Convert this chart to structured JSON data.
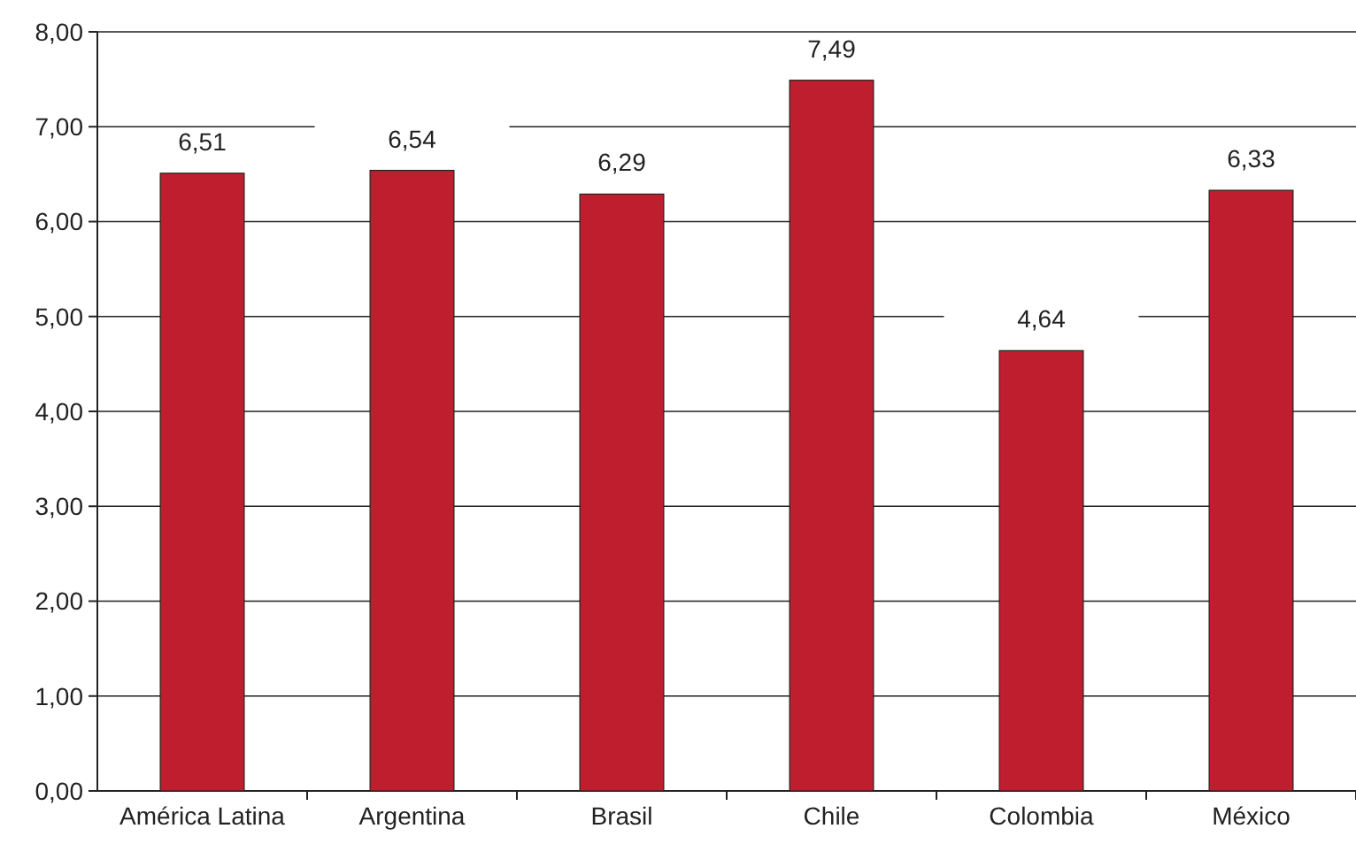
{
  "chart_data": {
    "type": "bar",
    "categories": [
      "América Latina",
      "Argentina",
      "Brasil",
      "Chile",
      "Colombia",
      "México"
    ],
    "values": [
      6.51,
      6.54,
      6.29,
      7.49,
      4.64,
      6.33
    ],
    "value_labels": [
      "6,51",
      "6,54",
      "6,29",
      "7,49",
      "4,64",
      "6,33"
    ],
    "color": "#be1e2d",
    "ylim": [
      0,
      8
    ],
    "yticks": [
      {
        "value": 0,
        "label": "0,00"
      },
      {
        "value": 1,
        "label": "1,00"
      },
      {
        "value": 2,
        "label": "2,00"
      },
      {
        "value": 3,
        "label": "3,00"
      },
      {
        "value": 4,
        "label": "4,00"
      },
      {
        "value": 5,
        "label": "5,00"
      },
      {
        "value": 6,
        "label": "6,00"
      },
      {
        "value": 7,
        "label": "7,00"
      },
      {
        "value": 8,
        "label": "8,00"
      }
    ],
    "grid": "y"
  }
}
